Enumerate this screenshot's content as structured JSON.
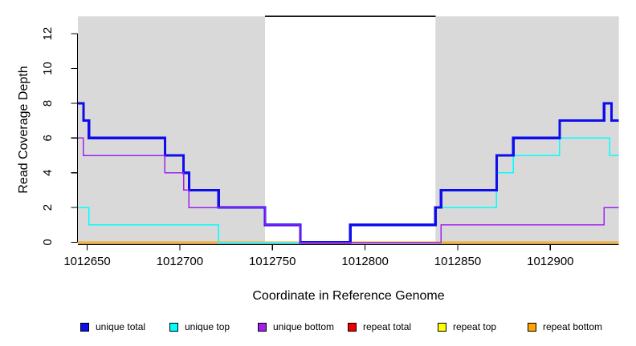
{
  "chart_data": {
    "type": "line",
    "step": true,
    "title": "",
    "xlabel": "Coordinate in Reference Genome",
    "ylabel": "Read Coverage Depth",
    "xlim": [
      1012645,
      1012937
    ],
    "ylim": [
      0,
      13
    ],
    "x_ticks": [
      1012650,
      1012700,
      1012750,
      1012800,
      1012850,
      1012900
    ],
    "y_ticks": [
      0,
      2,
      4,
      6,
      8,
      10,
      12
    ],
    "grid": false,
    "plot_background": "#ffffff",
    "band_color": "#d9d9d9",
    "shaded_bands": [
      {
        "name": "left-shaded-region",
        "x0": 1012645,
        "x1": 1012746
      },
      {
        "name": "right-shaded-region",
        "x0": 1012838,
        "x1": 1012937
      }
    ],
    "top_segment": {
      "name": "repeat-region-marker",
      "x0": 1012746,
      "x1": 1012838,
      "y": 13,
      "color": "#000000"
    },
    "series": [
      {
        "name": "repeat total",
        "color": "#ee0000",
        "width": 1.5,
        "points": [
          [
            1012645,
            0
          ]
        ]
      },
      {
        "name": "repeat top",
        "color": "#ffff00",
        "width": 1.5,
        "points": [
          [
            1012645,
            0
          ]
        ]
      },
      {
        "name": "repeat bottom",
        "color": "#ffa500",
        "width": 2,
        "points": [
          [
            1012645,
            0
          ]
        ]
      },
      {
        "name": "unique top",
        "color": "#00ffff",
        "width": 1.5,
        "points": [
          [
            1012645,
            2
          ],
          [
            1012651,
            1
          ],
          [
            1012721,
            0
          ],
          [
            1012792,
            1
          ],
          [
            1012838,
            2
          ],
          [
            1012871,
            4
          ],
          [
            1012880,
            5
          ],
          [
            1012905,
            6
          ],
          [
            1012932,
            5
          ]
        ]
      },
      {
        "name": "unique total",
        "color": "#0d0dee",
        "width": 3.2,
        "points": [
          [
            1012645,
            8
          ],
          [
            1012648,
            7
          ],
          [
            1012651,
            6
          ],
          [
            1012692,
            5
          ],
          [
            1012702,
            4
          ],
          [
            1012705,
            3
          ],
          [
            1012721,
            2
          ],
          [
            1012746,
            1
          ],
          [
            1012765,
            0
          ],
          [
            1012792,
            1
          ],
          [
            1012838,
            2
          ],
          [
            1012841,
            3
          ],
          [
            1012871,
            5
          ],
          [
            1012880,
            6
          ],
          [
            1012905,
            7
          ],
          [
            1012929,
            8
          ],
          [
            1012933,
            7
          ]
        ]
      },
      {
        "name": "unique bottom",
        "color": "#a020f0",
        "width": 1.5,
        "points": [
          [
            1012645,
            6
          ],
          [
            1012648,
            5
          ],
          [
            1012692,
            4
          ],
          [
            1012702,
            3
          ],
          [
            1012705,
            2
          ],
          [
            1012746,
            1
          ],
          [
            1012765,
            0
          ],
          [
            1012841,
            1
          ],
          [
            1012929,
            2
          ]
        ]
      }
    ],
    "legend": {
      "position": "bottom",
      "items": [
        {
          "label": "unique total",
          "color": "#0d0dee"
        },
        {
          "label": "unique top",
          "color": "#00ffff"
        },
        {
          "label": "unique bottom",
          "color": "#a020f0"
        },
        {
          "label": "repeat total",
          "color": "#ee0000"
        },
        {
          "label": "repeat top",
          "color": "#ffff00"
        },
        {
          "label": "repeat bottom",
          "color": "#ffa500"
        }
      ]
    }
  }
}
